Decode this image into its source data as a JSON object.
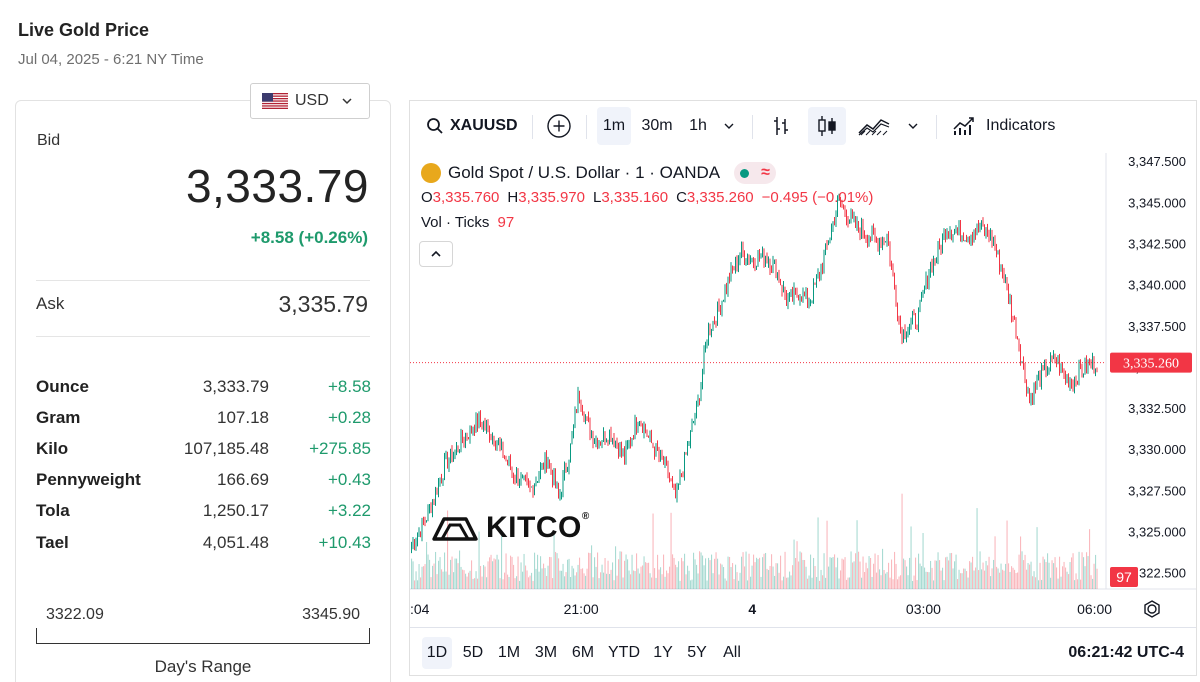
{
  "page": {
    "title": "Live Gold Price",
    "subtitle": "Jul 04, 2025 - 6:21 NY Time"
  },
  "currency": {
    "selected": "USD",
    "flag_icon": "us-flag-icon"
  },
  "price": {
    "bid_label": "Bid",
    "bid": "3,333.79",
    "change": "+8.58 (+0.26%)",
    "ask_label": "Ask",
    "ask": "3,335.79",
    "units": [
      {
        "name": "Ounce",
        "price": "3,333.79",
        "change": "+8.58"
      },
      {
        "name": "Gram",
        "price": "107.18",
        "change": "+0.28"
      },
      {
        "name": "Kilo",
        "price": "107,185.48",
        "change": "+275.85"
      },
      {
        "name": "Pennyweight",
        "price": "166.69",
        "change": "+0.43"
      },
      {
        "name": "Tola",
        "price": "1,250.17",
        "change": "+3.22"
      },
      {
        "name": "Tael",
        "price": "4,051.48",
        "change": "+10.43"
      }
    ],
    "day_range": {
      "low": "3322.09",
      "high": "3345.90",
      "label": "Day's Range"
    }
  },
  "toolbar": {
    "symbol": "XAUUSD",
    "intervals": [
      "1m",
      "30m",
      "1h"
    ],
    "active_interval": "1m",
    "indicators_label": "Indicators"
  },
  "legend": {
    "name": "Gold Spot / U.S. Dollar · 1 · OANDA",
    "wave_glyph": "≈",
    "o_label": "O",
    "o": "3,335.760",
    "h_label": "H",
    "h": "3,335.970",
    "l_label": "L",
    "l": "3,335.160",
    "c_label": "C",
    "c": "3,335.260",
    "chg": "−0.495 (−0.01%)",
    "vol_label": "Vol · Ticks",
    "vol_value": "97"
  },
  "logo": {
    "text": "KITCO",
    "reg": "®"
  },
  "bottom": {
    "ranges": [
      "1D",
      "5D",
      "1M",
      "3M",
      "6M",
      "YTD",
      "1Y",
      "5Y",
      "All"
    ],
    "active_range": "1D",
    "clock": "06:21:42 UTC-4"
  },
  "colors": {
    "up": "#089981",
    "down": "#f23645",
    "change_green": "#1e9a6c"
  },
  "chart_data": {
    "type": "line",
    "title": "",
    "ylim": [
      3321.5,
      3348
    ],
    "y_ticks": [
      "3,347.500",
      "3,345.000",
      "3,342.500",
      "3,340.000",
      "3,337.500",
      "3,335.000",
      "3,332.500",
      "3,330.000",
      "3,327.500",
      "3,325.000",
      "3,322.500"
    ],
    "y_tick_values": [
      3347.5,
      3345,
      3342.5,
      3340,
      3337.5,
      3335,
      3332.5,
      3330,
      3327.5,
      3325,
      3322.5
    ],
    "x_ticks": [
      ":04",
      "21:00",
      "4",
      "03:00",
      "06:00"
    ],
    "x_tick_hours": [
      18.07,
      21,
      24,
      27,
      30
    ],
    "x_range_hours": [
      18.0,
      30.2
    ],
    "last_price": "3,335.260",
    "last_price_value": 3335.26,
    "last_volume": "97",
    "series": [
      {
        "hour": [
          18.0,
          18.3,
          18.6,
          18.9,
          19.2,
          19.5,
          19.8,
          20.1,
          20.4,
          20.6,
          20.8,
          20.95,
          21.1,
          21.25,
          21.5,
          21.75,
          22.0,
          22.2,
          22.45,
          22.65,
          22.85,
          23.05,
          23.2,
          23.4,
          23.6,
          23.8,
          24.0,
          24.2,
          24.4,
          24.6,
          24.8,
          25.0,
          25.2,
          25.5,
          25.8,
          26.05,
          26.2,
          26.35,
          26.6,
          26.9,
          27.1,
          27.25,
          27.4,
          27.6,
          27.8,
          28.0,
          28.2,
          28.4,
          28.6,
          28.85,
          29.05,
          29.3,
          29.45,
          29.6,
          29.75,
          29.9,
          30.05,
          30.2
        ],
        "price": [
          3324.0,
          3326.0,
          3329.0,
          3330.5,
          3331.8,
          3330.5,
          3328.5,
          3327.5,
          3329.5,
          3327.0,
          3330.0,
          3333.5,
          3331.5,
          3330.5,
          3331.0,
          3329.5,
          3332.0,
          3330.5,
          3329.0,
          3327.0,
          3330.0,
          3333.0,
          3337.0,
          3338.5,
          3340.5,
          3342.0,
          3341.5,
          3341.8,
          3341.0,
          3339.0,
          3339.5,
          3339.0,
          3341.0,
          3345.0,
          3343.5,
          3343.0,
          3342.5,
          3343.0,
          3337.0,
          3338.0,
          3341.0,
          3342.0,
          3343.5,
          3343.2,
          3343.0,
          3343.5,
          3342.8,
          3340.5,
          3337.5,
          3333.0,
          3334.5,
          3335.5,
          3334.5,
          3334.0,
          3334.8,
          3335.0,
          3335.4,
          3335.26
        ]
      }
    ]
  }
}
